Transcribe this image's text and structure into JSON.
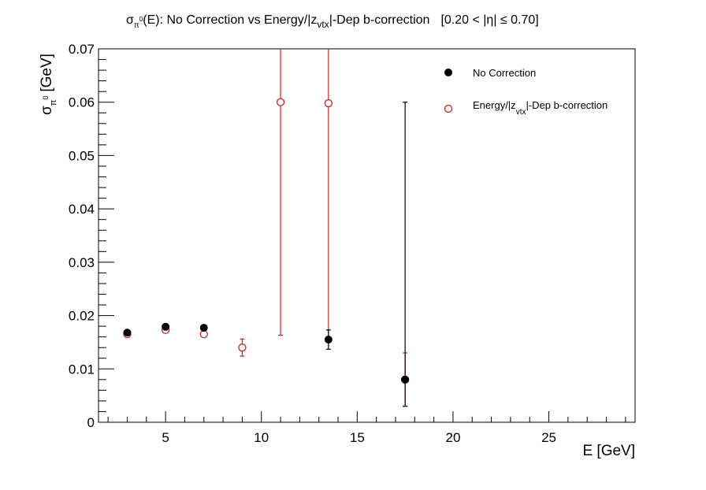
{
  "chart_data": {
    "type": "scatter",
    "title": {
      "sigma": "σ",
      "pi_sub": "π",
      "zero_sup": "0",
      "middle": "(E): No Correction vs Energy/|z",
      "vtx_sub": "vtx",
      "tail": "|-Dep b-correction",
      "eta_range": "[0.20 < |η| ≤ 0.70]"
    },
    "xlabel": "E [GeV]",
    "ylabel": {
      "sigma": "σ",
      "pi_sub": "π",
      "zero_sup": "0",
      "unit": "[GeV]"
    },
    "xlim": [
      1.5,
      29.5
    ],
    "ylim": [
      0,
      0.07
    ],
    "x_tick_labels": [
      "5",
      "10",
      "15",
      "20",
      "25"
    ],
    "x_ticks": [
      5,
      10,
      15,
      20,
      25
    ],
    "y_tick_labels": [
      "0",
      "0.01",
      "0.02",
      "0.03",
      "0.04",
      "0.05",
      "0.06",
      "0.07"
    ],
    "y_ticks": [
      0,
      0.01,
      0.02,
      0.03,
      0.04,
      0.05,
      0.06,
      0.07
    ],
    "legend_position": "top-right",
    "series": [
      {
        "name": "No Correction",
        "marker": "filled-circle",
        "color": "#000000",
        "points": [
          {
            "x": 3.0,
            "y": 0.0168,
            "err_lo": 0.0002,
            "err_hi": 0.0002
          },
          {
            "x": 5.0,
            "y": 0.0179,
            "err_lo": 0.0002,
            "err_hi": 0.0002
          },
          {
            "x": 7.0,
            "y": 0.0177,
            "err_lo": 0.0002,
            "err_hi": 0.0002
          },
          {
            "x": 13.5,
            "y": 0.0155,
            "err_lo": 0.0018,
            "err_hi": 0.0018
          },
          {
            "x": 17.5,
            "y": 0.008,
            "err_lo": 0.005,
            "err_hi": 0.052
          }
        ]
      },
      {
        "name_parts": {
          "before": "Energy/|z",
          "sub": "vtx",
          "after": "|-Dep b-correction"
        },
        "marker": "open-circle",
        "color": "#cc2222",
        "points": [
          {
            "x": 3.0,
            "y": 0.0165,
            "err_lo": 0.0002,
            "err_hi": 0.0002
          },
          {
            "x": 5.0,
            "y": 0.0173,
            "err_lo": 0.0002,
            "err_hi": 0.0002
          },
          {
            "x": 7.0,
            "y": 0.0165,
            "err_lo": 0.0002,
            "err_hi": 0.0002
          },
          {
            "x": 9.0,
            "y": 0.014,
            "err_lo": 0.0016,
            "err_hi": 0.0016
          },
          {
            "x": 11.0,
            "y": 0.06,
            "err_lo": 0.0437,
            "err_hi": 0.02
          },
          {
            "x": 13.5,
            "y": 0.0598,
            "err_lo": 0.044,
            "err_hi": 0.02
          },
          {
            "x": 17.5,
            "y": 0.008,
            "err_lo": 0.005,
            "err_hi": 0.005
          }
        ]
      }
    ]
  }
}
